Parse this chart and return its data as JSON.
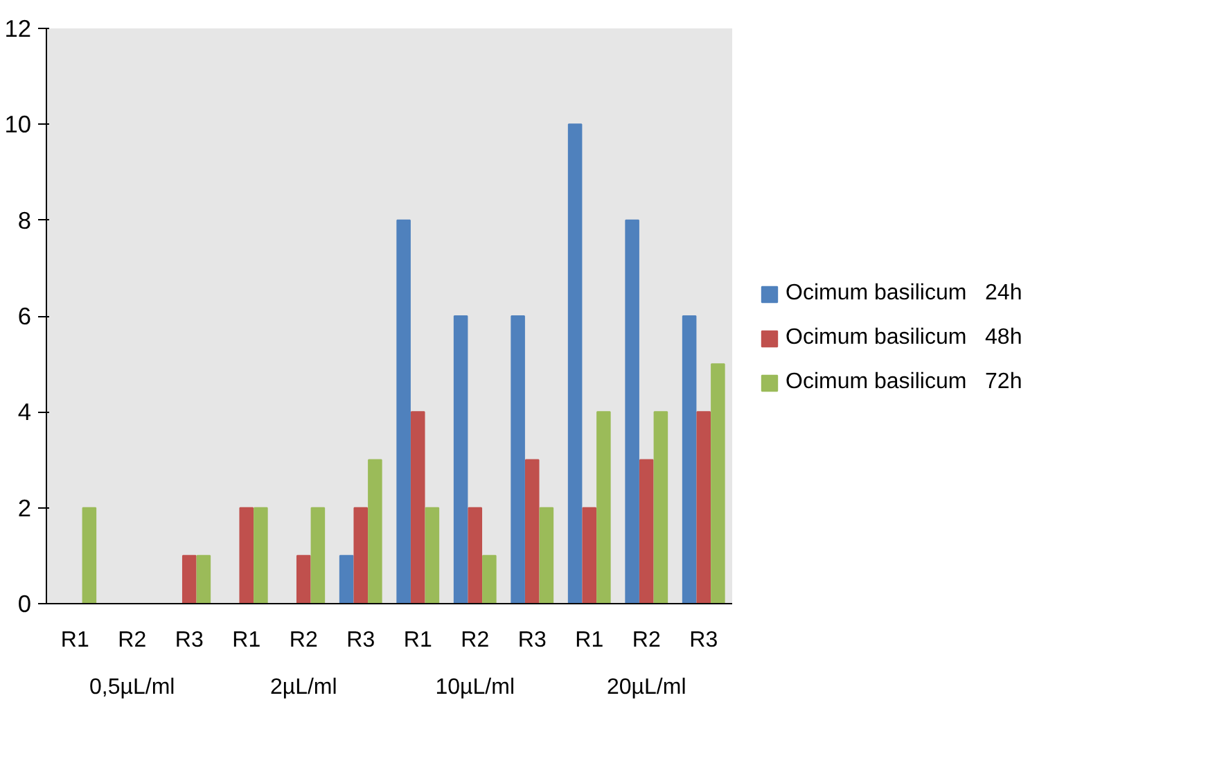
{
  "chart_data": {
    "type": "bar",
    "categories": [
      "R1",
      "R2",
      "R3",
      "R1",
      "R2",
      "R3",
      "R1",
      "R2",
      "R3",
      "R1",
      "R2",
      "R3"
    ],
    "annotations": [
      "0,5µL/ml",
      "2µL/ml",
      "10µL/ml",
      "20µL/ml"
    ],
    "series": [
      {
        "name": "Ocimum basilicum   24h",
        "color": "#4f81bd",
        "values": [
          0,
          0,
          0,
          0,
          0,
          1,
          8,
          6,
          6,
          10,
          8,
          6
        ]
      },
      {
        "name": "Ocimum basilicum   48h",
        "color": "#c0504d",
        "values": [
          0,
          0,
          1,
          2,
          1,
          2,
          4,
          2,
          3,
          2,
          3,
          4
        ]
      },
      {
        "name": "Ocimum basilicum   72h",
        "color": "#9bbb59",
        "values": [
          2,
          0,
          1,
          2,
          2,
          3,
          2,
          1,
          2,
          4,
          4,
          5
        ]
      }
    ],
    "ylim": [
      0,
      12
    ],
    "yticks": [
      0,
      2,
      4,
      6,
      8,
      10,
      12
    ],
    "legend": "right"
  }
}
